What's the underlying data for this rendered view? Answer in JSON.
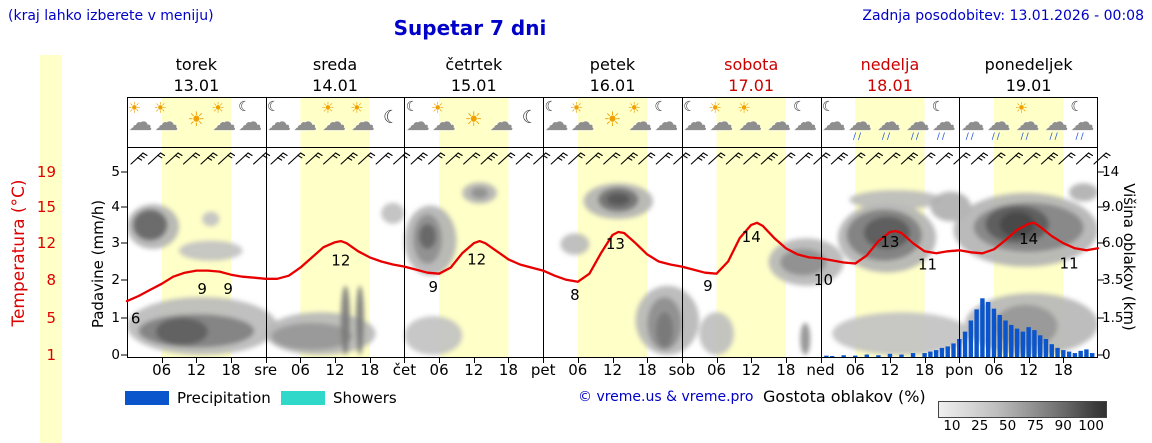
{
  "header": {
    "hint": "(kraj lahko izberete v meniju)",
    "title": "Supetar 7 dni",
    "updated": "Zadnja posodobitev: 13.01.2026 - 00:08"
  },
  "axes": {
    "temp_label": "Temperatura (°C)",
    "precip_label": "Padavine (mm/h)",
    "cloud_label": "Višina oblakov (km)",
    "temp_ticks": [
      "19",
      "15",
      "12",
      "8",
      "5",
      "1"
    ],
    "precip_ticks": [
      "5",
      "4",
      "3",
      "2",
      "1",
      "0"
    ],
    "cloud_ticks": [
      "14",
      "9.0",
      "6.0",
      "3.5",
      "1.5",
      "0"
    ]
  },
  "legend": {
    "precip": "Precipitation",
    "showers": "Showers",
    "credit": "© vreme.us & vreme.pro",
    "cloud_density": "Gostota oblakov (%)",
    "density_ticks": [
      "10",
      "25",
      "50",
      "75",
      "90",
      "100"
    ]
  },
  "colors": {
    "accent_blue": "#0000c8",
    "header_red": "#cc0000",
    "temp_axis_red": "#dd0000",
    "day_band": "#ffffc8",
    "temp_line": "#e80000",
    "precip_bar": "#0a55cc",
    "showers": "#2fd8c8"
  },
  "chart_data": {
    "type": "meteogram",
    "x_unit": "hours from 13.01 00:00",
    "x_range": [
      0,
      168
    ],
    "days": [
      {
        "name": "torek",
        "date": "13.01",
        "highlight": false
      },
      {
        "name": "sreda",
        "date": "14.01",
        "highlight": false
      },
      {
        "name": "četrtek",
        "date": "15.01",
        "highlight": false
      },
      {
        "name": "petek",
        "date": "16.01",
        "highlight": false
      },
      {
        "name": "sobota",
        "date": "17.01",
        "highlight": true
      },
      {
        "name": "nedelja",
        "date": "18.01",
        "highlight": true
      },
      {
        "name": "ponedeljek",
        "date": "19.01",
        "highlight": false
      }
    ],
    "time_ticks": [
      {
        "h": 6,
        "label": "06"
      },
      {
        "h": 12,
        "label": "12"
      },
      {
        "h": 18,
        "label": "18"
      },
      {
        "h": 24,
        "label": "sre"
      },
      {
        "h": 30,
        "label": "06"
      },
      {
        "h": 36,
        "label": "12"
      },
      {
        "h": 42,
        "label": "18"
      },
      {
        "h": 48,
        "label": "čet"
      },
      {
        "h": 54,
        "label": "06"
      },
      {
        "h": 60,
        "label": "12"
      },
      {
        "h": 66,
        "label": "18"
      },
      {
        "h": 72,
        "label": "pet"
      },
      {
        "h": 78,
        "label": "06"
      },
      {
        "h": 84,
        "label": "12"
      },
      {
        "h": 90,
        "label": "18"
      },
      {
        "h": 96,
        "label": "sob"
      },
      {
        "h": 102,
        "label": "06"
      },
      {
        "h": 108,
        "label": "12"
      },
      {
        "h": 114,
        "label": "18"
      },
      {
        "h": 120,
        "label": "ned"
      },
      {
        "h": 126,
        "label": "06"
      },
      {
        "h": 132,
        "label": "12"
      },
      {
        "h": 138,
        "label": "18"
      },
      {
        "h": 144,
        "label": "pon"
      },
      {
        "h": 150,
        "label": "06"
      },
      {
        "h": 156,
        "label": "12"
      },
      {
        "h": 162,
        "label": "18"
      }
    ],
    "temperature_c": {
      "axis_min": 1,
      "axis_max": 19,
      "points": [
        [
          0,
          6.3
        ],
        [
          2,
          6.8
        ],
        [
          4,
          7.4
        ],
        [
          6,
          8.0
        ],
        [
          8,
          8.7
        ],
        [
          10,
          9.1
        ],
        [
          12,
          9.3
        ],
        [
          14,
          9.3
        ],
        [
          16,
          9.2
        ],
        [
          18,
          8.9
        ],
        [
          20,
          8.7
        ],
        [
          22,
          8.6
        ],
        [
          24,
          8.5
        ],
        [
          26,
          8.5
        ],
        [
          28,
          8.8
        ],
        [
          30,
          9.6
        ],
        [
          32,
          10.6
        ],
        [
          34,
          11.6
        ],
        [
          36,
          12.1
        ],
        [
          37,
          12.2
        ],
        [
          38,
          12.0
        ],
        [
          40,
          11.2
        ],
        [
          42,
          10.6
        ],
        [
          44,
          10.2
        ],
        [
          46,
          9.9
        ],
        [
          48,
          9.7
        ],
        [
          50,
          9.4
        ],
        [
          52,
          9.1
        ],
        [
          54,
          9.0
        ],
        [
          56,
          9.6
        ],
        [
          58,
          11.0
        ],
        [
          60,
          12.0
        ],
        [
          61,
          12.2
        ],
        [
          62,
          12.0
        ],
        [
          64,
          11.2
        ],
        [
          66,
          10.4
        ],
        [
          68,
          9.9
        ],
        [
          70,
          9.6
        ],
        [
          72,
          9.3
        ],
        [
          74,
          8.8
        ],
        [
          76,
          8.4
        ],
        [
          78,
          8.2
        ],
        [
          80,
          9.0
        ],
        [
          82,
          11.0
        ],
        [
          84,
          12.8
        ],
        [
          85,
          13.1
        ],
        [
          86,
          13.0
        ],
        [
          88,
          12.0
        ],
        [
          90,
          10.9
        ],
        [
          92,
          10.2
        ],
        [
          94,
          9.9
        ],
        [
          96,
          9.7
        ],
        [
          98,
          9.4
        ],
        [
          100,
          9.1
        ],
        [
          102,
          9.0
        ],
        [
          104,
          10.2
        ],
        [
          106,
          12.5
        ],
        [
          108,
          13.8
        ],
        [
          109,
          14.0
        ],
        [
          110,
          13.7
        ],
        [
          112,
          12.5
        ],
        [
          114,
          11.5
        ],
        [
          116,
          10.9
        ],
        [
          118,
          10.6
        ],
        [
          120,
          10.5
        ],
        [
          122,
          10.3
        ],
        [
          124,
          10.1
        ],
        [
          126,
          10.0
        ],
        [
          128,
          10.8
        ],
        [
          130,
          12.2
        ],
        [
          132,
          13.1
        ],
        [
          133,
          13.2
        ],
        [
          134,
          13.0
        ],
        [
          136,
          12.0
        ],
        [
          138,
          11.2
        ],
        [
          140,
          11.0
        ],
        [
          142,
          11.2
        ],
        [
          144,
          11.3
        ],
        [
          146,
          11.1
        ],
        [
          148,
          11.0
        ],
        [
          150,
          11.4
        ],
        [
          152,
          12.3
        ],
        [
          154,
          13.3
        ],
        [
          156,
          13.9
        ],
        [
          157,
          14.0
        ],
        [
          158,
          13.6
        ],
        [
          160,
          12.7
        ],
        [
          162,
          12.0
        ],
        [
          164,
          11.5
        ],
        [
          166,
          11.3
        ],
        [
          168,
          11.5
        ]
      ],
      "labels": [
        {
          "h": 1.5,
          "t": 4.6,
          "text": "6"
        },
        {
          "h": 13,
          "t": 7.5,
          "text": "9"
        },
        {
          "h": 17.5,
          "t": 7.5,
          "text": "9"
        },
        {
          "h": 37,
          "t": 10.3,
          "text": "12"
        },
        {
          "h": 53,
          "t": 7.7,
          "text": "9"
        },
        {
          "h": 60.5,
          "t": 10.4,
          "text": "12"
        },
        {
          "h": 77.5,
          "t": 6.9,
          "text": "8"
        },
        {
          "h": 84.5,
          "t": 11.9,
          "text": "13"
        },
        {
          "h": 100.5,
          "t": 7.8,
          "text": "9"
        },
        {
          "h": 108,
          "t": 12.6,
          "text": "14"
        },
        {
          "h": 120.5,
          "t": 8.4,
          "text": "10"
        },
        {
          "h": 132,
          "t": 12.1,
          "text": "13"
        },
        {
          "h": 138.5,
          "t": 9.9,
          "text": "11"
        },
        {
          "h": 156,
          "t": 12.4,
          "text": "14"
        },
        {
          "h": 163,
          "t": 10.0,
          "text": "11"
        }
      ]
    },
    "precipitation_mmh": {
      "axis_max": 5,
      "bars": [
        [
          121,
          0.05
        ],
        [
          122,
          0.04
        ],
        [
          124,
          0.06
        ],
        [
          126,
          0.05
        ],
        [
          128,
          0.08
        ],
        [
          130,
          0.06
        ],
        [
          132,
          0.1
        ],
        [
          134,
          0.08
        ],
        [
          136,
          0.12
        ],
        [
          138,
          0.12
        ],
        [
          139,
          0.16
        ],
        [
          140,
          0.2
        ],
        [
          141,
          0.26
        ],
        [
          142,
          0.3
        ],
        [
          143,
          0.38
        ],
        [
          144,
          0.5
        ],
        [
          145,
          0.7
        ],
        [
          146,
          1.0
        ],
        [
          147,
          1.3
        ],
        [
          148,
          1.6
        ],
        [
          149,
          1.5
        ],
        [
          150,
          1.32
        ],
        [
          151,
          1.15
        ],
        [
          152,
          1.0
        ],
        [
          153,
          0.88
        ],
        [
          154,
          0.78
        ],
        [
          155,
          0.7
        ],
        [
          156,
          0.82
        ],
        [
          157,
          0.74
        ],
        [
          158,
          0.6
        ],
        [
          159,
          0.5
        ],
        [
          160,
          0.36
        ],
        [
          161,
          0.26
        ],
        [
          162,
          0.2
        ],
        [
          163,
          0.16
        ],
        [
          164,
          0.12
        ],
        [
          165,
          0.18
        ],
        [
          166,
          0.22
        ],
        [
          167,
          0.12
        ]
      ]
    },
    "cloud_layers_km": {
      "levels": [
        0,
        1.5,
        3.5,
        6,
        9,
        14
      ],
      "density_scale": "0-1 ≈ Gostota oblakov 0-100%",
      "blobs": [
        [
          0,
          26,
          0,
          2.6,
          0.26
        ],
        [
          0,
          9,
          5.6,
          9.4,
          0.3
        ],
        [
          9,
          20,
          4.8,
          6.2,
          0.22
        ],
        [
          13,
          16,
          7.4,
          8.6,
          0.22
        ],
        [
          24,
          43,
          0,
          1.8,
          0.28
        ],
        [
          44,
          48,
          7.6,
          9.6,
          0.24
        ],
        [
          48,
          57,
          3.8,
          9.2,
          0.3
        ],
        [
          48,
          58,
          0,
          1.6,
          0.22
        ],
        [
          58,
          64,
          9.5,
          12.5,
          0.3
        ],
        [
          75,
          80,
          5.2,
          6.8,
          0.26
        ],
        [
          79,
          91,
          8,
          12.4,
          0.3
        ],
        [
          88,
          99,
          0,
          3.2,
          0.28
        ],
        [
          99,
          105,
          0,
          1.8,
          0.24
        ],
        [
          111,
          124,
          3.2,
          6.4,
          0.28
        ],
        [
          122,
          146,
          0,
          1.8,
          0.22
        ],
        [
          123,
          140,
          4,
          9.6,
          0.3
        ],
        [
          125,
          141,
          8.8,
          11.4,
          0.26
        ],
        [
          139,
          146,
          7.8,
          11.2,
          0.32
        ],
        [
          143,
          168,
          4.4,
          11,
          0.3
        ],
        [
          145,
          168,
          0,
          2.8,
          0.28
        ],
        [
          163,
          168,
          9.8,
          12.4,
          0.32
        ],
        [
          1,
          7,
          6.2,
          8.8,
          0.72
        ],
        [
          2,
          22,
          0.3,
          1.7,
          0.58
        ],
        [
          5,
          14,
          0.4,
          1.5,
          0.75
        ],
        [
          25,
          39,
          0.2,
          1.3,
          0.45
        ],
        [
          37,
          38.6,
          0,
          3.2,
          0.6
        ],
        [
          39.6,
          41,
          0,
          3.2,
          0.6
        ],
        [
          49.5,
          54.5,
          4.6,
          8.4,
          0.5
        ],
        [
          50.5,
          53.5,
          5.6,
          7.6,
          0.72
        ],
        [
          59.5,
          62.5,
          10.2,
          11.8,
          0.5
        ],
        [
          81.5,
          88.5,
          8.6,
          11.8,
          0.65
        ],
        [
          83,
          87,
          9.2,
          11,
          0.8
        ],
        [
          90,
          96,
          0.2,
          2.6,
          0.5
        ],
        [
          91.5,
          94.5,
          0.3,
          1.8,
          0.62
        ],
        [
          113,
          121,
          3.8,
          5.6,
          0.5
        ],
        [
          116.5,
          118.2,
          0,
          1.3,
          0.5
        ],
        [
          124.5,
          137.5,
          4.8,
          8.8,
          0.58
        ],
        [
          127.5,
          135.5,
          5.6,
          8.2,
          0.78
        ],
        [
          146.5,
          165.5,
          5.4,
          9.6,
          0.55
        ],
        [
          148.5,
          159.5,
          6,
          9.2,
          0.78
        ],
        [
          151,
          157,
          6.5,
          8.6,
          0.88
        ],
        [
          150,
          161,
          0.3,
          2.2,
          0.45
        ]
      ]
    },
    "weather_icons": [
      [
        "partly",
        "partly",
        "sun",
        "partly",
        "night-partly"
      ],
      [
        "night-partly",
        "cloudy",
        "partly",
        "partly",
        "night"
      ],
      [
        "night-partly",
        "partly",
        "sun",
        "cloudy",
        "night"
      ],
      [
        "night-partly",
        "partly",
        "sun",
        "partly",
        "night-partly"
      ],
      [
        "night-partly",
        "partly",
        "partly",
        "cloudy",
        "night-partly"
      ],
      [
        "night-partly",
        "rain",
        "rain",
        "rain",
        "night-rain"
      ],
      [
        "rain",
        "rain",
        "partly-rain",
        "rain",
        "night-rain"
      ]
    ],
    "wind_barbs_count": 56
  }
}
